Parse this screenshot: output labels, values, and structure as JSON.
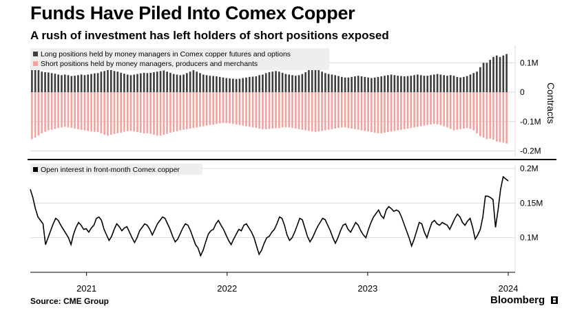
{
  "header": {
    "title": "Funds Have Piled Into Comex Copper",
    "subtitle": "A rush of investment has left holders of short positions exposed"
  },
  "footer": {
    "source": "Source: CME Group",
    "brand": "Bloomberg"
  },
  "colors": {
    "long": "#3d3d3d",
    "short": "#f2a3a0",
    "line": "#000000",
    "grid": "#d9d9d9",
    "legend_bg": "#eeeeee",
    "divider": "#000000"
  },
  "chart_data": [
    {
      "type": "bar",
      "ylabel": "Contracts",
      "ylim": [
        -0.22,
        0.15
      ],
      "yticks": [
        0.1,
        0,
        -0.1,
        -0.2
      ],
      "ytick_labels": [
        "0.1M",
        "0",
        "-0.1M",
        "-0.2M"
      ],
      "legend_position": "top-left",
      "series": [
        {
          "name": "Long positions held by money managers in Comex copper futures and options",
          "values": [
            0.095,
            0.088,
            0.075,
            0.07,
            0.068,
            0.067,
            0.065,
            0.063,
            0.06,
            0.058,
            0.06,
            0.058,
            0.055,
            0.056,
            0.058,
            0.06,
            0.058,
            0.06,
            0.062,
            0.064,
            0.065,
            0.07,
            0.072,
            0.085,
            0.078,
            0.072,
            0.07,
            0.066,
            0.063,
            0.06,
            0.058,
            0.06,
            0.062,
            0.064,
            0.066,
            0.065,
            0.066,
            0.068,
            0.07,
            0.072,
            0.074,
            0.07,
            0.066,
            0.062,
            0.06,
            0.058,
            0.06,
            0.065,
            0.07,
            0.075,
            0.07,
            0.065,
            0.06,
            0.058,
            0.056,
            0.055,
            0.054,
            0.052,
            0.05,
            0.048,
            0.047,
            0.046,
            0.045,
            0.046,
            0.048,
            0.05,
            0.052,
            0.053,
            0.054,
            0.058,
            0.06,
            0.065,
            0.068,
            0.07,
            0.072,
            0.07,
            0.066,
            0.062,
            0.06,
            0.058,
            0.056,
            0.058,
            0.062,
            0.068,
            0.08,
            0.085,
            0.09,
            0.08,
            0.07,
            0.065,
            0.062,
            0.06,
            0.058,
            0.055,
            0.052,
            0.05,
            0.05,
            0.052,
            0.054,
            0.056,
            0.054,
            0.052,
            0.05,
            0.048,
            0.05,
            0.052,
            0.054,
            0.056,
            0.058,
            0.06,
            0.058,
            0.056,
            0.055,
            0.054,
            0.055,
            0.056,
            0.058,
            0.06,
            0.058,
            0.056,
            0.056,
            0.058,
            0.06,
            0.062,
            0.06,
            0.058,
            0.056,
            0.058,
            0.056,
            0.052,
            0.05,
            0.052,
            0.055,
            0.06,
            0.065,
            0.07,
            0.085,
            0.1,
            0.1,
            0.11,
            0.12,
            0.125,
            0.12,
            0.125,
            0.13
          ],
          "color_key": "long"
        },
        {
          "name": "Short positions held by money managers, producers and merchants",
          "values": [
            -0.16,
            -0.155,
            -0.148,
            -0.14,
            -0.135,
            -0.13,
            -0.128,
            -0.125,
            -0.122,
            -0.12,
            -0.118,
            -0.12,
            -0.122,
            -0.124,
            -0.126,
            -0.128,
            -0.13,
            -0.132,
            -0.134,
            -0.135,
            -0.136,
            -0.14,
            -0.145,
            -0.148,
            -0.145,
            -0.142,
            -0.14,
            -0.138,
            -0.135,
            -0.133,
            -0.132,
            -0.134,
            -0.136,
            -0.138,
            -0.14,
            -0.14,
            -0.142,
            -0.145,
            -0.148,
            -0.148,
            -0.145,
            -0.142,
            -0.138,
            -0.135,
            -0.133,
            -0.13,
            -0.128,
            -0.126,
            -0.124,
            -0.122,
            -0.12,
            -0.118,
            -0.116,
            -0.114,
            -0.112,
            -0.11,
            -0.108,
            -0.106,
            -0.105,
            -0.105,
            -0.106,
            -0.108,
            -0.11,
            -0.112,
            -0.114,
            -0.116,
            -0.118,
            -0.12,
            -0.122,
            -0.124,
            -0.126,
            -0.126,
            -0.125,
            -0.124,
            -0.123,
            -0.122,
            -0.12,
            -0.12,
            -0.12,
            -0.122,
            -0.124,
            -0.126,
            -0.128,
            -0.13,
            -0.132,
            -0.134,
            -0.135,
            -0.134,
            -0.132,
            -0.13,
            -0.128,
            -0.126,
            -0.124,
            -0.122,
            -0.12,
            -0.12,
            -0.122,
            -0.124,
            -0.126,
            -0.128,
            -0.13,
            -0.132,
            -0.134,
            -0.136,
            -0.138,
            -0.14,
            -0.14,
            -0.138,
            -0.136,
            -0.134,
            -0.132,
            -0.13,
            -0.128,
            -0.126,
            -0.124,
            -0.122,
            -0.12,
            -0.118,
            -0.116,
            -0.114,
            -0.112,
            -0.11,
            -0.108,
            -0.11,
            -0.112,
            -0.116,
            -0.12,
            -0.125,
            -0.13,
            -0.128,
            -0.126,
            -0.124,
            -0.122,
            -0.125,
            -0.13,
            -0.14,
            -0.15,
            -0.155,
            -0.16,
            -0.158,
            -0.162,
            -0.168,
            -0.17,
            -0.172,
            -0.175
          ],
          "color_key": "short"
        }
      ]
    },
    {
      "type": "line",
      "ylim": [
        0.05,
        0.205
      ],
      "yticks": [
        0.1,
        0.15,
        0.2
      ],
      "ytick_labels": [
        "0.1M",
        "0.15M",
        "0.2M"
      ],
      "x_tick_labels": [
        "2021",
        "2022",
        "2023",
        "2024"
      ],
      "legend_position": "top-left",
      "series": [
        {
          "name": "Open interest in front-month Comex copper",
          "values": [
            0.17,
            0.158,
            0.142,
            0.13,
            0.125,
            0.12,
            0.09,
            0.1,
            0.11,
            0.12,
            0.128,
            0.125,
            0.118,
            0.112,
            0.106,
            0.1,
            0.09,
            0.105,
            0.115,
            0.122,
            0.118,
            0.112,
            0.113,
            0.108,
            0.114,
            0.118,
            0.128,
            0.13,
            0.125,
            0.112,
            0.104,
            0.096,
            0.102,
            0.112,
            0.12,
            0.116,
            0.11,
            0.114,
            0.116,
            0.108,
            0.1,
            0.093,
            0.1,
            0.11,
            0.115,
            0.12,
            0.118,
            0.112,
            0.104,
            0.112,
            0.12,
            0.125,
            0.13,
            0.128,
            0.12,
            0.112,
            0.102,
            0.094,
            0.098,
            0.106,
            0.114,
            0.12,
            0.118,
            0.11,
            0.1,
            0.09,
            0.085,
            0.074,
            0.082,
            0.094,
            0.105,
            0.11,
            0.112,
            0.12,
            0.125,
            0.118,
            0.112,
            0.104,
            0.096,
            0.09,
            0.098,
            0.105,
            0.112,
            0.11,
            0.118,
            0.12,
            0.114,
            0.108,
            0.1,
            0.088,
            0.076,
            0.082,
            0.092,
            0.1,
            0.102,
            0.108,
            0.112,
            0.12,
            0.13,
            0.128,
            0.118,
            0.104,
            0.096,
            0.1,
            0.108,
            0.118,
            0.128,
            0.126,
            0.114,
            0.102,
            0.094,
            0.1,
            0.108,
            0.116,
            0.122,
            0.128,
            0.126,
            0.118,
            0.11,
            0.1,
            0.092,
            0.1,
            0.11,
            0.118,
            0.12,
            0.112,
            0.108,
            0.115,
            0.122,
            0.118,
            0.11,
            0.104,
            0.1,
            0.112,
            0.122,
            0.13,
            0.135,
            0.14,
            0.132,
            0.128,
            0.14,
            0.145,
            0.142,
            0.138,
            0.14,
            0.138,
            0.13,
            0.12,
            0.11,
            0.1,
            0.088,
            0.098,
            0.11,
            0.122,
            0.12,
            0.108,
            0.1,
            0.112,
            0.122,
            0.125,
            0.12,
            0.118,
            0.122,
            0.12,
            0.118,
            0.112,
            0.12,
            0.128,
            0.134,
            0.13,
            0.122,
            0.118,
            0.124,
            0.128,
            0.115,
            0.098,
            0.104,
            0.112,
            0.13,
            0.16,
            0.16,
            0.158,
            0.155,
            0.115,
            0.14,
            0.17,
            0.188,
            0.185,
            0.182
          ],
          "color_key": "line"
        }
      ]
    }
  ]
}
